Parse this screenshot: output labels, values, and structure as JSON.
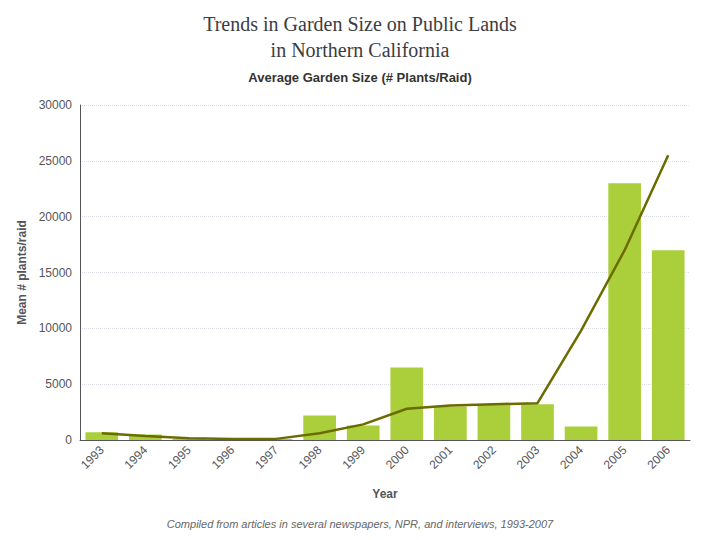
{
  "chart_data": {
    "type": "bar",
    "title": "Trends in Garden Size on Public Lands\nin Northern California",
    "subtitle": "Average Garden Size (# Plants/Raid)",
    "xlabel": "Year",
    "ylabel": "Mean # plants/raid",
    "annotations": [
      "Compiled from articles in several newspapers, NPR, and interviews, 1993-2007"
    ],
    "categories": [
      "1993",
      "1994",
      "1995",
      "1996",
      "1997",
      "1998",
      "1999",
      "2000",
      "2001",
      "2002",
      "2003",
      "2004",
      "2005",
      "2006"
    ],
    "series": [
      {
        "type": "bar",
        "color": "#aacf3a",
        "values": [
          700,
          500,
          100,
          100,
          100,
          2200,
          1300,
          6500,
          3000,
          3200,
          3200,
          1200,
          23000,
          17000
        ]
      },
      {
        "type": "line",
        "color": "#6b6b00",
        "values": [
          600,
          350,
          150,
          80,
          100,
          600,
          1400,
          2800,
          3100,
          3200,
          3300,
          9800,
          17000,
          25500
        ]
      }
    ],
    "ylim": [
      0,
      30000
    ],
    "yticks": [
      0,
      5000,
      10000,
      15000,
      20000,
      25000,
      30000
    ],
    "grid": true
  }
}
